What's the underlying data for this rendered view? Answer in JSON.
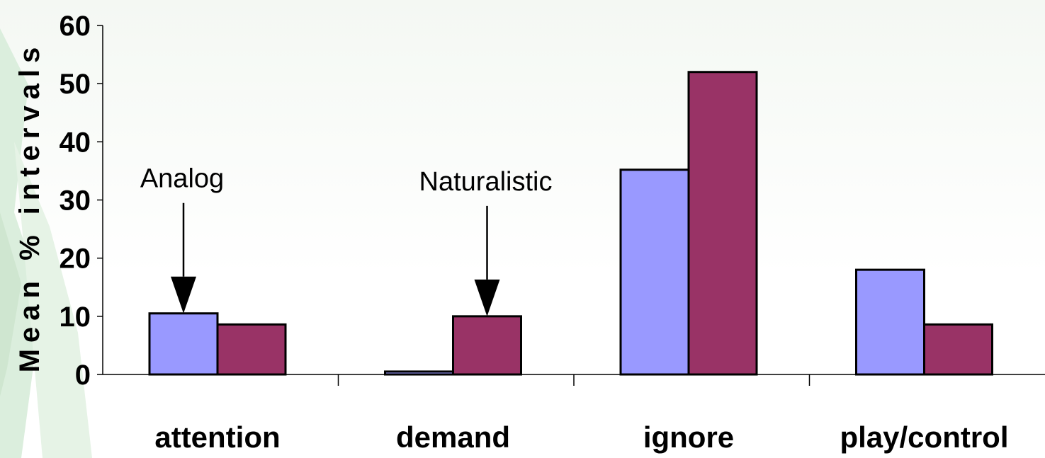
{
  "chart_data": {
    "type": "bar",
    "title": "",
    "xlabel": "",
    "ylabel": "Mean % intervals",
    "ylim": [
      0,
      60
    ],
    "yticks": [
      "0",
      "10",
      "20",
      "30",
      "40",
      "50",
      "60"
    ],
    "grid": false,
    "legend": "none",
    "categories": [
      "attention",
      "demand",
      "ignore",
      "play/control"
    ],
    "series": [
      {
        "name": "Analog",
        "values": [
          10.5,
          0.5,
          35.2,
          18
        ],
        "color": "#9999ff"
      },
      {
        "name": "Naturalistic",
        "values": [
          8.6,
          10,
          52,
          8.6
        ],
        "color": "#993366"
      }
    ],
    "annotations": [
      {
        "text": "Analog",
        "series": 0,
        "category": 0
      },
      {
        "text": "Naturalistic",
        "series": 1,
        "category": 1
      }
    ]
  }
}
